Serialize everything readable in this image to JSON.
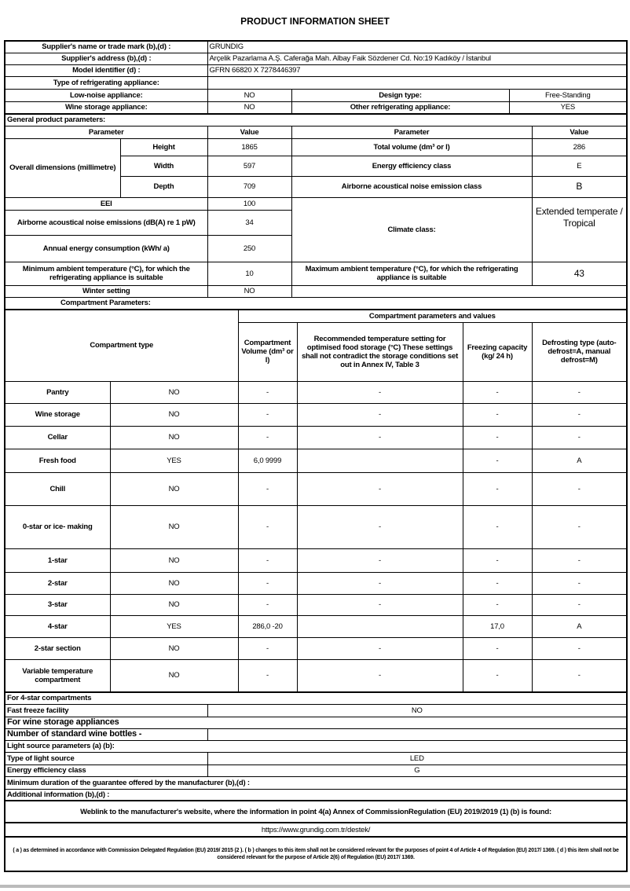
{
  "title": "PRODUCT INFORMATION SHEET",
  "supplier": {
    "name_label": "Supplier's name or trade mark (b),(d) :",
    "name": "GRUNDIG",
    "address_label": "Supplier's address (b),(d) :",
    "address": "Arçelik Pazarlama A.Ş. Caferağa Mah. Albay Faik Sözdener Cd. No:19 Kadıköy / İstanbul",
    "model_label": "Model identifier (d) :",
    "model": "GFRN 66820 X 7278446397",
    "type_label": "Type of refrigerating appliance:"
  },
  "appliance": {
    "low_noise_label": "Low-noise appliance:",
    "low_noise": "NO",
    "design_label": "Design type:",
    "design": "Free-Standing",
    "wine_label": "Wine storage appliance:",
    "wine": "NO",
    "other_label": "Other refrigerating appliance:",
    "other": "YES"
  },
  "general": {
    "heading": "General product parameters:",
    "param_header": "Parameter",
    "value_header": "Value",
    "overall_dims": "Overall dimensions (millimetre)",
    "height_label": "Height",
    "height": "1865",
    "width_label": "Width",
    "width": "597",
    "depth_label": "Depth",
    "depth": "709",
    "total_volume_label": "Total volume (dm³ or l)",
    "total_volume": "286",
    "energy_class_label": "Energy efficiency class",
    "energy_class": "E",
    "noise_class_label": "Airborne acoustical noise emission class",
    "noise_class": "B",
    "eei_label": "EEI",
    "eei": "100",
    "noise_label": "Airborne acoustical noise emissions (dB(A) re 1 pW)",
    "noise": "34",
    "annual_label": "Annual energy consumption (kWh/ a)",
    "annual": "250",
    "climate_label": "Climate class:",
    "climate": "Extended temperate / Tropical",
    "min_temp_label": "Minimum ambient temperature (°C), for which the refrigerating appliance is suitable",
    "min_temp": "10",
    "max_temp_label": "Maximum ambient temperature (°C), for which the refrigerating appliance is suitable",
    "max_temp": "43",
    "winter_label": "Winter setting",
    "winter": "NO"
  },
  "compartments": {
    "heading": "Compartment Parameters:",
    "type_header": "Compartment type",
    "params_header": "Compartment parameters and values",
    "volume_header": "Compartment Volume (dm³ or l)",
    "temp_header": "Recommended temperature setting for optimised food storage (°C) These settings shall not contradict the storage conditions set out in Annex IV, Table 3",
    "freezing_header": "Freezing capacity (kg/ 24 h)",
    "defrost_header": "Defrosting type (auto-defrost=A, manual defrost=M)",
    "rows": [
      {
        "name": "Pantry",
        "present": "NO",
        "volume": "-",
        "temp": "-",
        "freezing": "-",
        "defrost": "-"
      },
      {
        "name": "Wine storage",
        "present": "NO",
        "volume": "-",
        "temp": "-",
        "freezing": "-",
        "defrost": "-"
      },
      {
        "name": "Cellar",
        "present": "NO",
        "volume": "-",
        "temp": "-",
        "freezing": "-",
        "defrost": "-"
      },
      {
        "name": "Fresh food",
        "present": "YES",
        "volume": "6,0 9999",
        "temp": "",
        "freezing": "-",
        "defrost": "A"
      },
      {
        "name": "Chill",
        "present": "NO",
        "volume": "-",
        "temp": "-",
        "freezing": "-",
        "defrost": "-"
      },
      {
        "name": "0-star or ice- making",
        "present": "NO",
        "volume": "-",
        "temp": "-",
        "freezing": "-",
        "defrost": "-"
      },
      {
        "name": "1-star",
        "present": "NO",
        "volume": "-",
        "temp": "-",
        "freezing": "-",
        "defrost": "-"
      },
      {
        "name": "2-star",
        "present": "NO",
        "volume": "-",
        "temp": "-",
        "freezing": "-",
        "defrost": "-"
      },
      {
        "name": "3-star",
        "present": "NO",
        "volume": "-",
        "temp": "-",
        "freezing": "-",
        "defrost": "-"
      },
      {
        "name": "4-star",
        "present": "YES",
        "volume": "286,0 -20",
        "temp": "",
        "freezing": "17,0",
        "defrost": "A"
      },
      {
        "name": "2-star section",
        "present": "NO",
        "volume": "-",
        "temp": "-",
        "freezing": "-",
        "defrost": "-"
      },
      {
        "name": "Variable temperature compartment",
        "present": "NO",
        "volume": "-",
        "temp": "-",
        "freezing": "-",
        "defrost": "-"
      }
    ]
  },
  "four_star": {
    "heading": "For 4-star compartments",
    "fast_freeze_label": "Fast freeze facility",
    "fast_freeze": "NO"
  },
  "wine": {
    "heading": "For wine storage appliances",
    "bottles_label": "Number of standard wine bottles -",
    "bottles": ""
  },
  "light": {
    "heading": "Light source parameters (a) (b):",
    "type_label": "Type of light source",
    "type": "LED",
    "class_label": "Energy efficiency class",
    "class": "G"
  },
  "guarantee_label": "Minimum duration of the guarantee offered by the manufacturer (b),(d) :",
  "additional_label": "Additional information (b),(d) :",
  "weblink_label": "Weblink to the manufacturer's website, where the information in point 4(a) Annex of CommissionRegulation (EU) 2019/2019 (1) (b) is found:",
  "weblink": "https://www.grundig.com.tr/destek/",
  "footnote": "( a ) as determined in accordance with Commission Delegated Regulation (EU) 2019/ 2015 (2 ). ( b ) changes to this item shall not be considered relevant for the purposes of point 4 of Article 4 of Regulation (EU) 2017/ 1369. ( d ) this item shall not be considered relevant for the purpose of Article 2(6) of Regulation (EU) 2017/ 1369."
}
